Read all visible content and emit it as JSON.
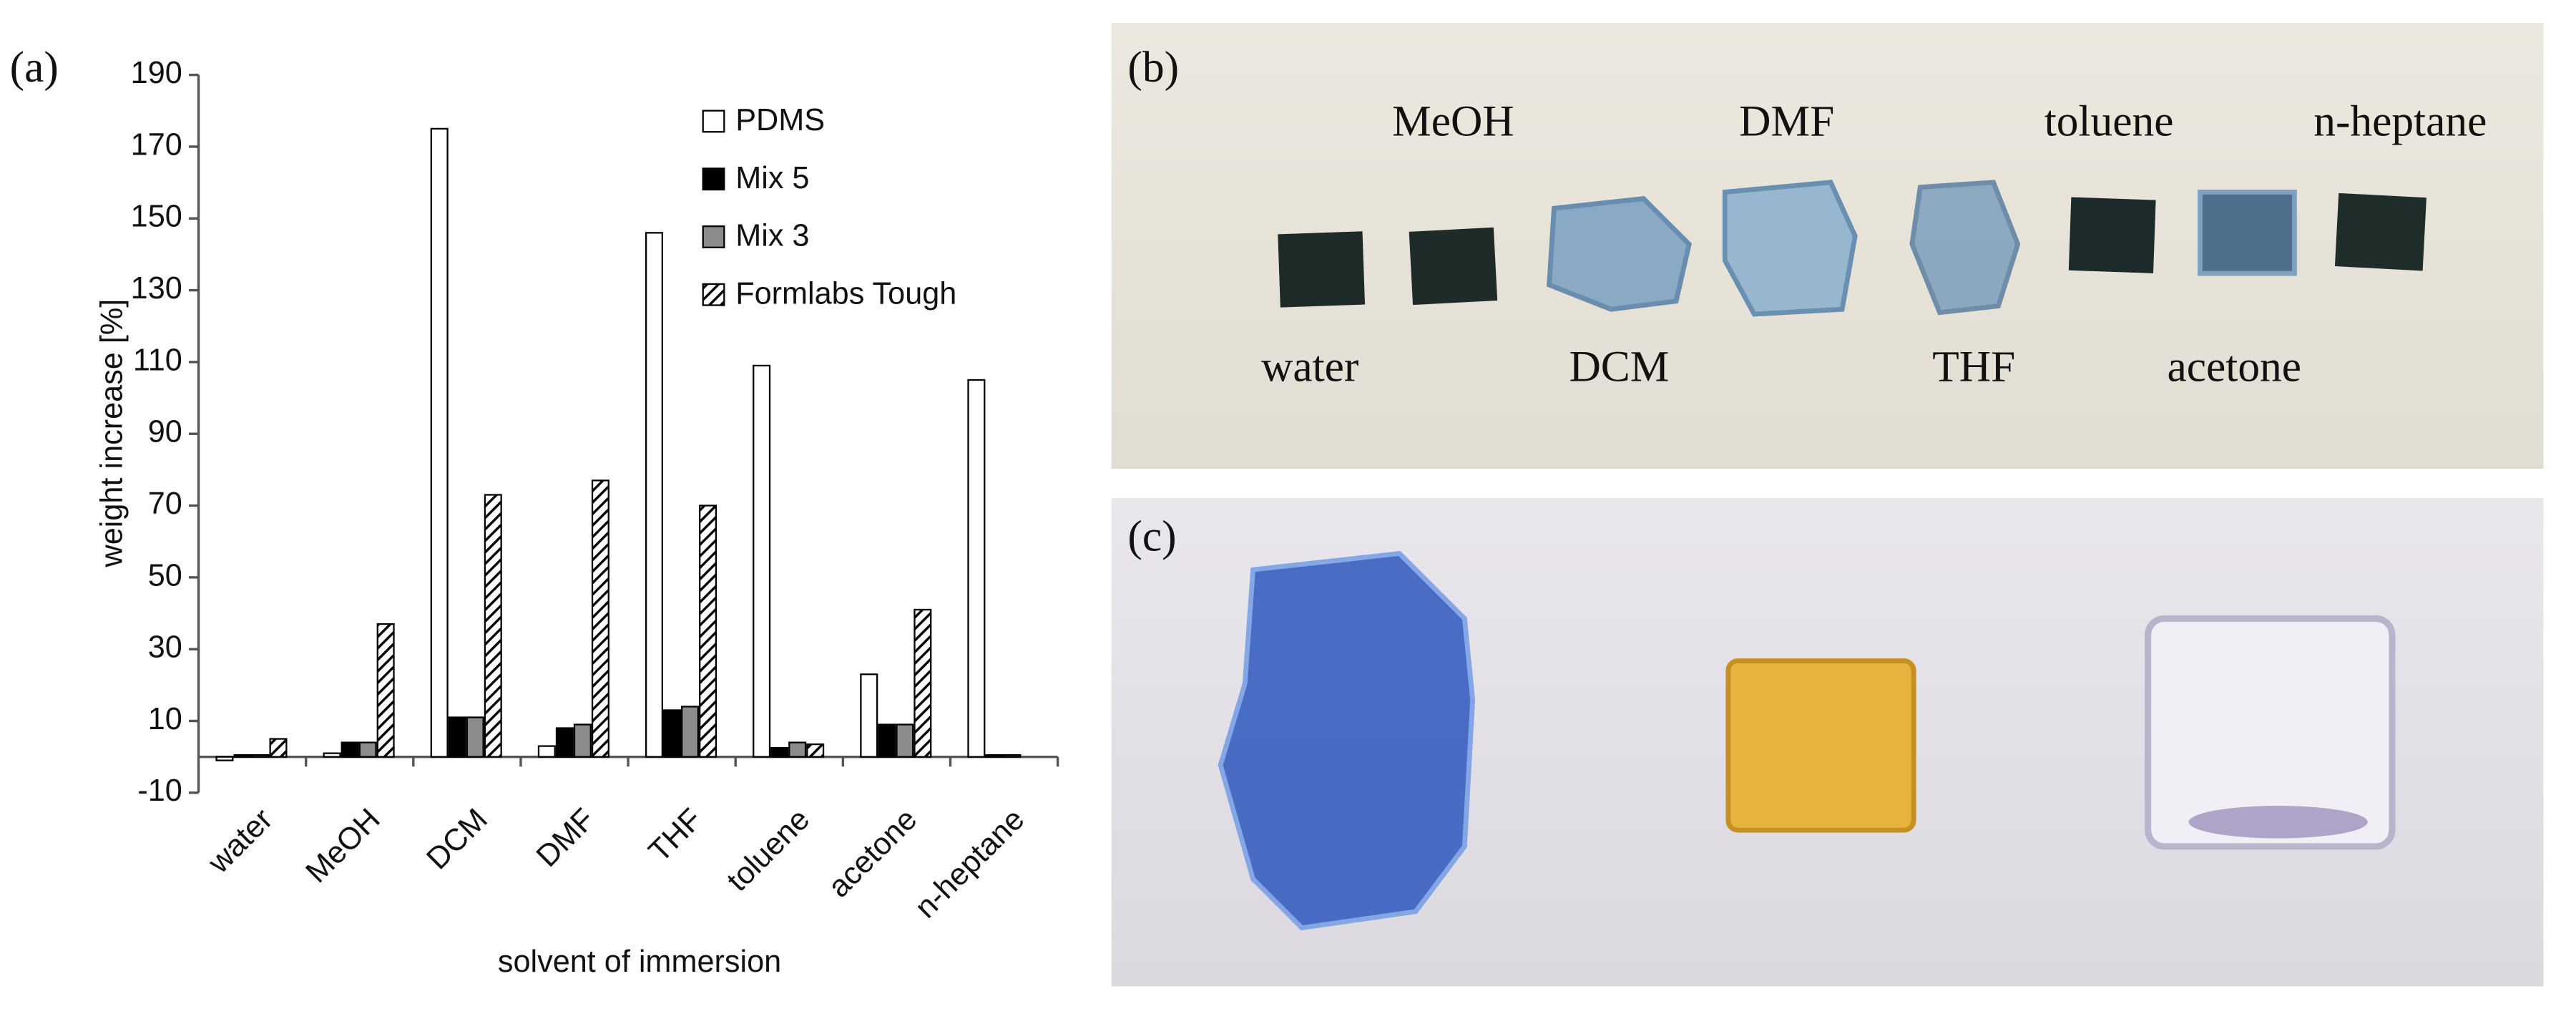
{
  "chart_data": {
    "type": "bar",
    "panel_label": "(a)",
    "y_label": "weight increase [%]",
    "x_label": "solvent of immersion",
    "categories": [
      "water",
      "MeOH",
      "DCM",
      "DMF",
      "THF",
      "toluene",
      "acetone",
      "n-heptane"
    ],
    "series": [
      {
        "name": "PDMS",
        "color": "#ffffff",
        "values": [
          -1,
          1,
          175,
          3,
          146,
          109,
          23,
          105
        ]
      },
      {
        "name": "Mix 5",
        "color": "#000000",
        "values": [
          0.5,
          4,
          11,
          8,
          13,
          2.5,
          9,
          0.5
        ]
      },
      {
        "name": "Mix 3",
        "color": "#8c8c8c",
        "values": [
          0.5,
          4,
          11,
          9,
          14,
          4,
          9,
          0.5
        ]
      },
      {
        "name": "Formlabs Tough",
        "color": "#000000",
        "hatch": true,
        "values": [
          5,
          37,
          73,
          77,
          70,
          3.5,
          41,
          0
        ]
      }
    ],
    "ylim": [
      -10,
      190
    ],
    "yticks": [
      -10,
      10,
      30,
      50,
      70,
      90,
      110,
      130,
      150,
      170,
      190
    ],
    "legend": "upper right"
  },
  "photos": [
    {
      "panel_label": "(b)"
    },
    {
      "panel_label": "(c)"
    }
  ]
}
